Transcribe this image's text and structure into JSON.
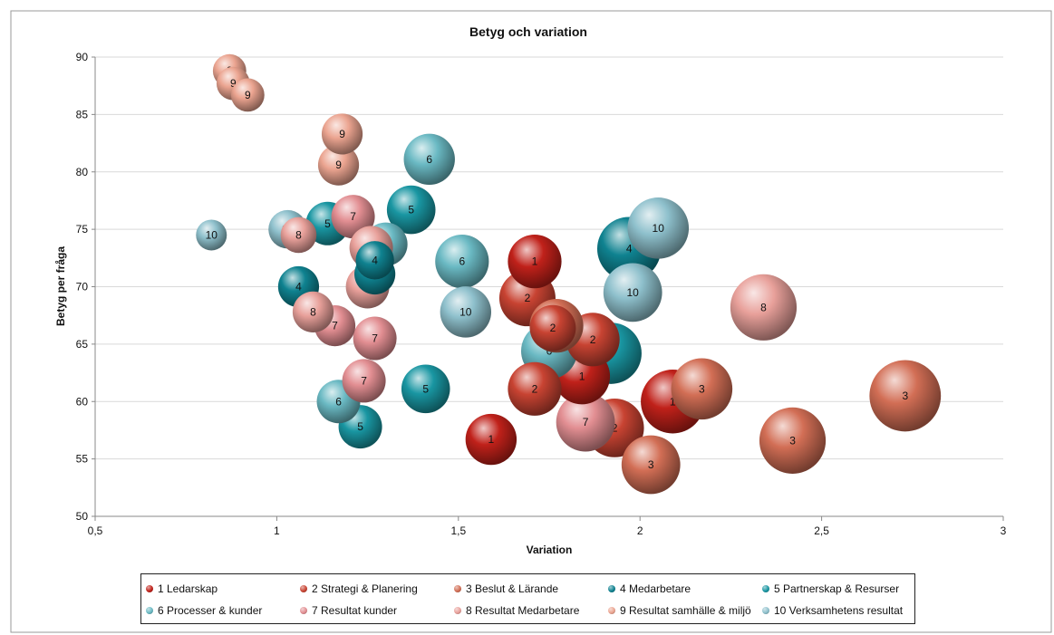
{
  "chart_data": {
    "type": "bubble",
    "title": "Betyg och variation",
    "xlabel": "Variation",
    "ylabel": "Betyg per fråga",
    "xlim": [
      0.5,
      3
    ],
    "ylim": [
      50,
      90
    ],
    "xticks": [
      "0,5",
      "1",
      "1,5",
      "2",
      "2,5",
      "3"
    ],
    "yticks": [
      "50",
      "55",
      "60",
      "65",
      "70",
      "75",
      "80",
      "85",
      "90"
    ],
    "grid": "horizontal",
    "legend_position": "bottom",
    "series": [
      {
        "name": "1 Ledarskap",
        "label": "1",
        "color": "#c0211a",
        "points": [
          {
            "x": 1.59,
            "y": 56.7,
            "size": 1.3
          },
          {
            "x": 1.71,
            "y": 72.2,
            "size": 1.4
          },
          {
            "x": 1.84,
            "y": 62.2,
            "size": 1.5
          },
          {
            "x": 2.09,
            "y": 60.0,
            "size": 1.8
          }
        ]
      },
      {
        "name": "2 Strategi & Planering",
        "label": "2",
        "color": "#c84332",
        "points": [
          {
            "x": 1.69,
            "y": 69.0,
            "size": 1.5
          },
          {
            "x": 1.71,
            "y": 61.1,
            "size": 1.4
          },
          {
            "x": 1.87,
            "y": 65.4,
            "size": 1.4
          },
          {
            "x": 1.93,
            "y": 57.7,
            "size": 1.6
          },
          {
            "x": 1.76,
            "y": 66.4,
            "size": 1.1
          }
        ]
      },
      {
        "name": "3 Beslut & Lärande",
        "label": "3",
        "color": "#d26e55",
        "points": [
          {
            "x": 1.77,
            "y": 66.6,
            "size": 1.4
          },
          {
            "x": 2.03,
            "y": 54.5,
            "size": 1.6
          },
          {
            "x": 2.17,
            "y": 61.1,
            "size": 1.7
          },
          {
            "x": 2.42,
            "y": 56.6,
            "size": 1.9
          },
          {
            "x": 2.73,
            "y": 60.5,
            "size": 2.1
          }
        ]
      },
      {
        "name": "4 Medarbetare",
        "label": "4",
        "color": "#0f8290",
        "points": [
          {
            "x": 1.06,
            "y": 70.0,
            "size": 0.9
          },
          {
            "x": 1.27,
            "y": 71.1,
            "size": 0.9
          },
          {
            "x": 1.27,
            "y": 72.3,
            "size": 0.8
          },
          {
            "x": 1.97,
            "y": 73.3,
            "size": 1.8
          }
        ]
      },
      {
        "name": "5 Partnerskap & Resurser",
        "label": "5",
        "color": "#1996a2",
        "points": [
          {
            "x": 1.14,
            "y": 75.5,
            "size": 1.0
          },
          {
            "x": 1.23,
            "y": 57.8,
            "size": 1.0
          },
          {
            "x": 1.37,
            "y": 76.7,
            "size": 1.2
          },
          {
            "x": 1.41,
            "y": 61.1,
            "size": 1.2
          },
          {
            "x": 1.92,
            "y": 64.2,
            "size": 1.7
          }
        ]
      },
      {
        "name": "6 Processer & kunder",
        "label": "6",
        "color": "#6ab9c3",
        "points": [
          {
            "x": 1.17,
            "y": 60.0,
            "size": 1.0
          },
          {
            "x": 1.3,
            "y": 73.7,
            "size": 1.0
          },
          {
            "x": 1.42,
            "y": 81.1,
            "size": 1.3
          },
          {
            "x": 1.51,
            "y": 72.2,
            "size": 1.4
          },
          {
            "x": 1.75,
            "y": 64.4,
            "size": 1.5
          }
        ]
      },
      {
        "name": "7 Resultat kunder",
        "label": "7",
        "color": "#e28e92",
        "points": [
          {
            "x": 1.16,
            "y": 66.6,
            "size": 0.9
          },
          {
            "x": 1.21,
            "y": 76.1,
            "size": 1.0
          },
          {
            "x": 1.24,
            "y": 61.8,
            "size": 1.0
          },
          {
            "x": 1.27,
            "y": 65.5,
            "size": 1.0
          },
          {
            "x": 1.85,
            "y": 58.2,
            "size": 1.6
          }
        ]
      },
      {
        "name": "8 Resultat Medarbetare",
        "label": "8",
        "color": "#e8a09a",
        "points": [
          {
            "x": 1.06,
            "y": 74.5,
            "size": 0.7
          },
          {
            "x": 1.1,
            "y": 67.8,
            "size": 0.9
          },
          {
            "x": 1.25,
            "y": 70.0,
            "size": 1.0
          },
          {
            "x": 1.26,
            "y": 73.4,
            "size": 1.0
          },
          {
            "x": 2.34,
            "y": 68.2,
            "size": 1.9
          }
        ]
      },
      {
        "name": "9 Resultat samhälle & miljö",
        "label": "9",
        "color": "#eba490",
        "points": [
          {
            "x": 0.87,
            "y": 88.8,
            "size": 0.6
          },
          {
            "x": 0.88,
            "y": 87.7,
            "size": 0.6
          },
          {
            "x": 0.92,
            "y": 86.7,
            "size": 0.6
          },
          {
            "x": 1.17,
            "y": 80.6,
            "size": 0.9
          },
          {
            "x": 1.18,
            "y": 83.3,
            "size": 0.9
          }
        ]
      },
      {
        "name": "10 Verksamhetens resultat",
        "label": "10",
        "color": "#8ec0cc",
        "points": [
          {
            "x": 0.82,
            "y": 74.5,
            "size": 0.5
          },
          {
            "x": 1.03,
            "y": 75.0,
            "size": 0.8
          },
          {
            "x": 1.52,
            "y": 67.8,
            "size": 1.3
          },
          {
            "x": 1.98,
            "y": 69.5,
            "size": 1.6
          },
          {
            "x": 2.05,
            "y": 75.1,
            "size": 1.7
          }
        ]
      }
    ]
  }
}
